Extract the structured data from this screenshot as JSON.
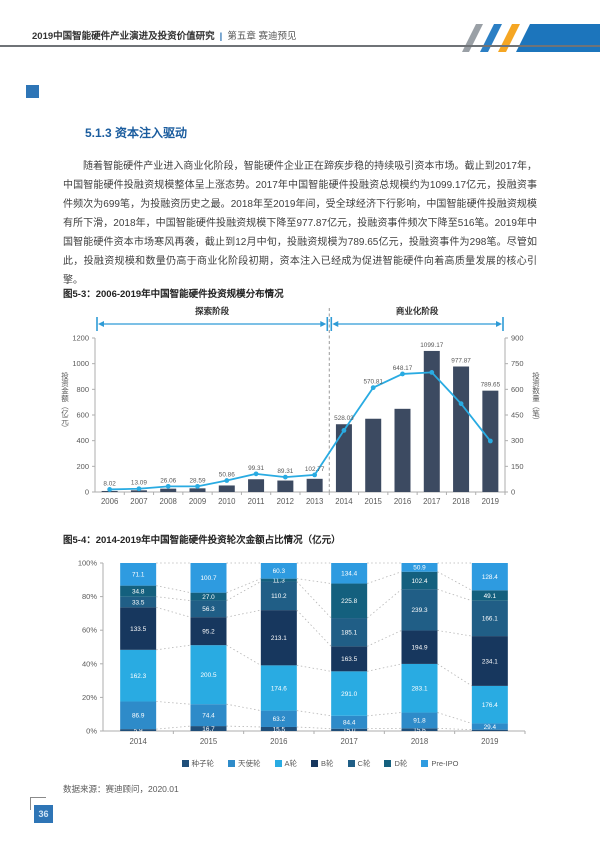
{
  "header": {
    "title": "2019中国智能硬件产业演进及投资价值研究",
    "divider": "|",
    "chapter": "第五章 赛迪预见"
  },
  "section": {
    "title": "5.1.3 资本注入驱动",
    "paragraph": "随着智能硬件产业进入商业化阶段，智能硬件企业正在蹄疾步稳的持续吸引资本市场。截止到2017年，中国智能硬件投融资规模整体呈上涨态势。2017年中国智能硬件投融资总规模约为1099.17亿元，投融资事件频次为699笔，为投融资历史之最。2018年至2019年间，受全球经济下行影响，中国智能硬件投融资规模有所下滑，2018年，中国智能硬件投融资规模下降至977.87亿元，投融资事件频次下降至516笔。2019年中国智能硬件资本市场寒风再袭，截止到12月中旬，投融资规模为789.65亿元，投融资事件为298笔。尽管如此，投融资规模和数量仍高于商业化阶段初期，资本注入已经成为促进智能硬件向着高质量发展的核心引擎。"
  },
  "figure1": {
    "caption": "图5-3：2006-2019年中国智能硬件投资规模分布情况"
  },
  "figure2": {
    "caption": "图5-4：2014-2019年中国智能硬件投资轮次金额占比情况（亿元）"
  },
  "source_note": "数据来源：赛迪顾问，2020.01",
  "page_number": "36",
  "colors": {
    "accent_blue": "#2e75b6",
    "stripe_gray": "#9aa0a6",
    "stripe_blue": "#2b7fc4",
    "stripe_yellow": "#f5a623",
    "stripe_bar": "#1c75bc",
    "bar_navy": "#3c4a61",
    "line_cyan": "#29abe2",
    "phase_arrow": "#2e9bd6",
    "axis_text": "#595959"
  },
  "chart_data": [
    {
      "type": "bar",
      "subtype": "bar+line dual axis",
      "title": "图5-3：2006-2019年中国智能硬件投资规模分布情况",
      "categories": [
        "2006",
        "2007",
        "2008",
        "2009",
        "2010",
        "2011",
        "2012",
        "2013",
        "2014",
        "2015",
        "2016",
        "2017",
        "2018",
        "2019"
      ],
      "series": [
        {
          "name": "投资金额（亿元）",
          "kind": "bar",
          "axis": "left",
          "color": "#3c4a61",
          "values": [
            8.02,
            13.09,
            26.06,
            28.59,
            50.86,
            99.31,
            89.31,
            102.77,
            528.03,
            570.81,
            648.17,
            1099.17,
            977.87,
            789.65
          ]
        },
        {
          "name": "投资数量（笔）",
          "kind": "line",
          "axis": "right",
          "color": "#29abe2",
          "estimated": true,
          "values": [
            15,
            19,
            33,
            33,
            67,
            106,
            87,
            100,
            360,
            610,
            690,
            699,
            516,
            298
          ]
        }
      ],
      "left_axis": {
        "label": "投资金额（亿元）",
        "min": 0,
        "max": 1200,
        "step": 200
      },
      "right_axis": {
        "label": "投资数量（笔）",
        "min": 0,
        "max": 900,
        "step": 150
      },
      "annotations": [
        {
          "label": "探索阶段",
          "from_index": 0,
          "to_index": 7
        },
        {
          "label": "商业化阶段",
          "from_index": 8,
          "to_index": 13
        }
      ],
      "grid": false,
      "legend_position": "none"
    },
    {
      "type": "bar",
      "subtype": "stacked-100-percent",
      "title": "图5-4：2014-2019年中国智能硬件投资轮次金额占比情况（亿元）",
      "categories": [
        "2014",
        "2015",
        "2016",
        "2017",
        "2018",
        "2019"
      ],
      "series": [
        {
          "name": "种子轮",
          "color": "#1f4e79",
          "values": [
            5.9,
            16.7,
            15.5,
            15.0,
            15.6,
            6.2
          ],
          "labels": [
            "5.9",
            "16.7",
            "15.5",
            "15.0",
            "15.6",
            null
          ]
        },
        {
          "name": "天使轮",
          "color": "#2e8bc9",
          "values": [
            86.9,
            74.4,
            63.2,
            84.4,
            91.8,
            29.4
          ]
        },
        {
          "name": "A轮",
          "color": "#29abe2",
          "values": [
            162.3,
            200.5,
            174.6,
            291.0,
            283.1,
            176.4
          ]
        },
        {
          "name": "B轮",
          "color": "#17375e",
          "values": [
            133.5,
            95.2,
            213.1,
            163.5,
            194.9,
            234.1
          ]
        },
        {
          "name": "C轮",
          "color": "#205e86",
          "values": [
            33.5,
            56.3,
            110.2,
            185.1,
            239.3,
            166.1
          ]
        },
        {
          "name": "D轮",
          "color": "#14607e",
          "values": [
            34.8,
            27.0,
            11.3,
            225.8,
            102.4,
            49.1
          ]
        },
        {
          "name": "Pre-IPO",
          "color": "#2e9be0",
          "values": [
            71.1,
            100.7,
            60.3,
            134.4,
            50.9,
            128.4
          ]
        }
      ],
      "y_axis": {
        "min": 0,
        "max": 100,
        "step": 20,
        "format": "percent",
        "tick_labels": [
          "0%",
          "20%",
          "40%",
          "60%",
          "80%",
          "100%"
        ]
      },
      "grid": false,
      "legend_position": "bottom",
      "legend_items": [
        "种子轮",
        "天使轮",
        "A轮",
        "B轮",
        "C轮",
        "D轮",
        "Pre-IPO"
      ]
    }
  ]
}
